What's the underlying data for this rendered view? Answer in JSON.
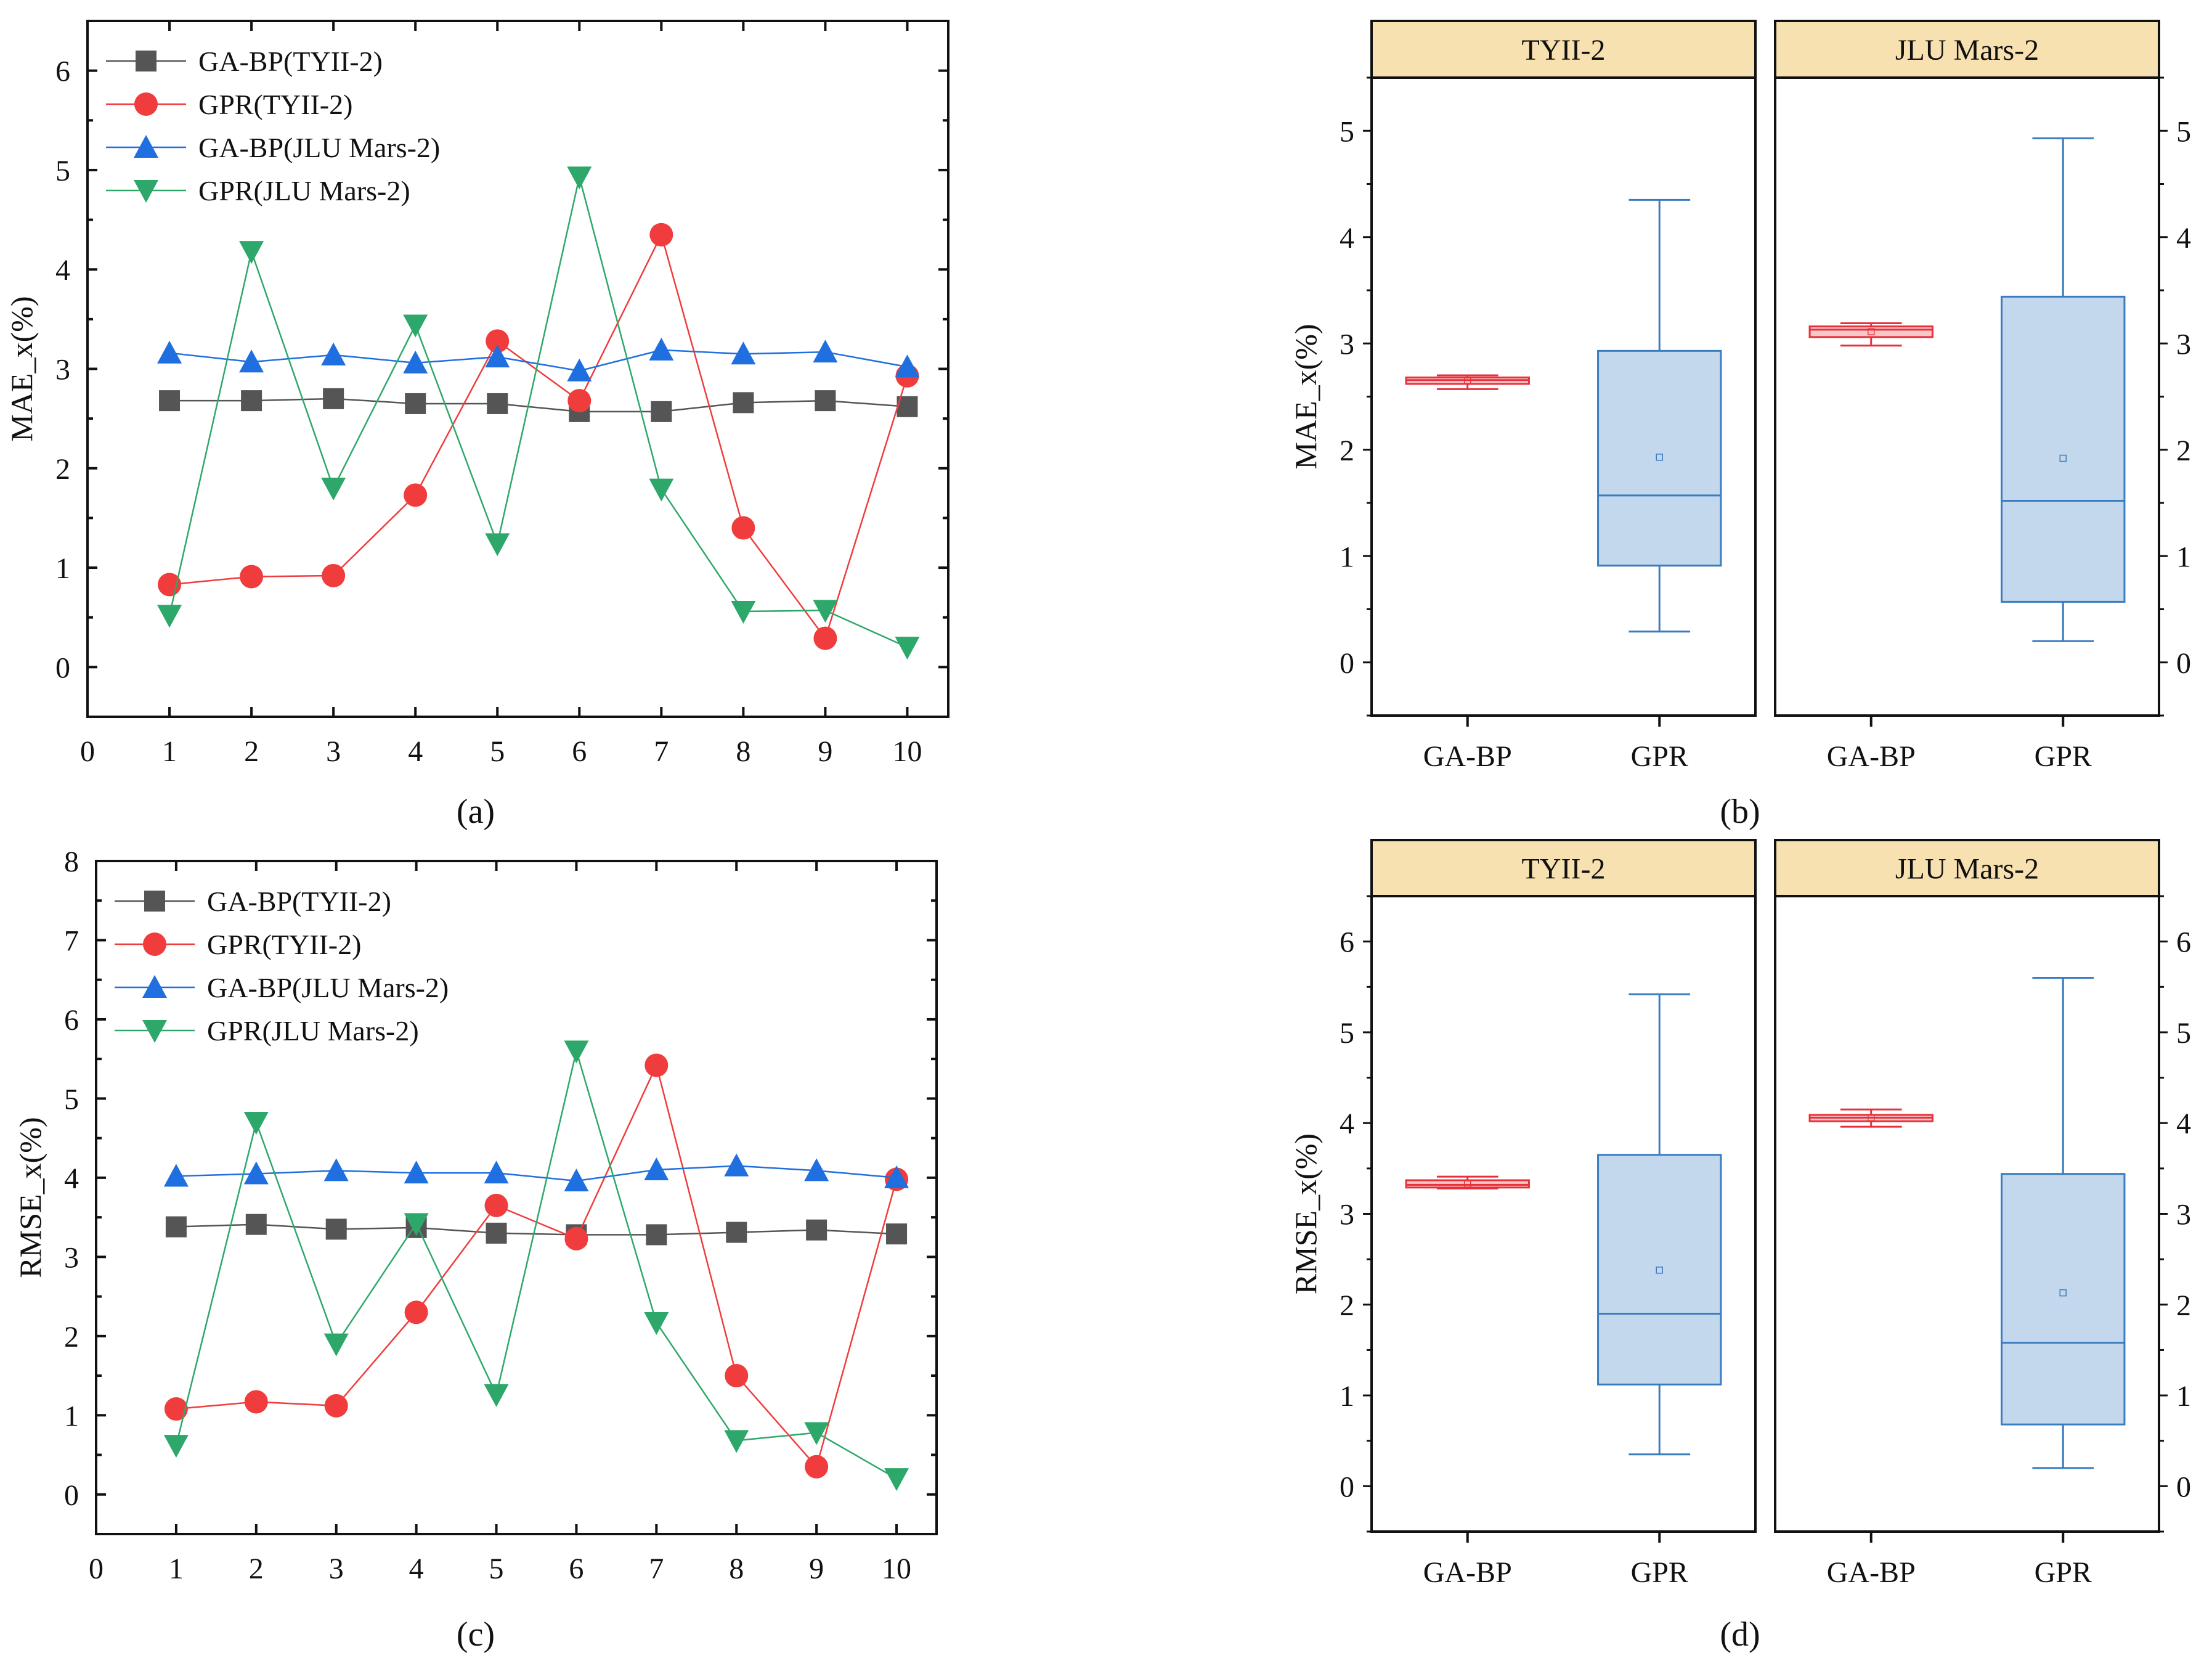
{
  "chart_data": [
    {
      "id": "a",
      "type": "line",
      "caption": "a",
      "xlabel": "",
      "ylabel": "MAE_x(%)",
      "xlim": [
        0,
        10.5
      ],
      "ylim": [
        -0.5,
        6.5
      ],
      "xticks": [
        0,
        1,
        2,
        3,
        4,
        5,
        6,
        7,
        8,
        9,
        10
      ],
      "yticks": [
        0,
        1,
        2,
        3,
        4,
        5,
        6
      ],
      "legend_position": "top-left",
      "x": [
        1,
        2,
        3,
        4,
        5,
        6,
        7,
        8,
        9,
        10
      ],
      "series": [
        {
          "name": "GA-BP(TYII-2)",
          "color": "#555555",
          "marker": "square",
          "values": [
            2.68,
            2.68,
            2.7,
            2.65,
            2.65,
            2.57,
            2.57,
            2.66,
            2.68,
            2.62
          ]
        },
        {
          "name": "GPR(TYII-2)",
          "color": "#f03c3c",
          "marker": "circle",
          "values": [
            0.83,
            0.91,
            0.92,
            1.73,
            3.28,
            2.68,
            4.35,
            1.4,
            0.29,
            2.93
          ]
        },
        {
          "name": "GA-BP(JLU Mars-2)",
          "color": "#1f6fe0",
          "marker": "triangle-up",
          "values": [
            3.16,
            3.07,
            3.14,
            3.06,
            3.12,
            2.98,
            3.19,
            3.15,
            3.17,
            3.02
          ]
        },
        {
          "name": "GPR(JLU Mars-2)",
          "color": "#2ea86a",
          "marker": "triangle-down",
          "values": [
            0.52,
            4.18,
            1.8,
            3.44,
            1.24,
            4.93,
            1.79,
            0.56,
            0.57,
            0.2
          ]
        }
      ]
    },
    {
      "id": "b",
      "type": "box",
      "caption": "b",
      "ylabel": "MAE_x(%)",
      "ylim": [
        -0.5,
        5.5
      ],
      "yticks": [
        0,
        1,
        2,
        3,
        4,
        5
      ],
      "facets": [
        {
          "title": "TYII-2",
          "boxes": [
            {
              "label": "GA-BP",
              "min": 2.57,
              "q1": 2.62,
              "median": 2.655,
              "q3": 2.68,
              "max": 2.7,
              "mean": 2.646
            },
            {
              "label": "GPR",
              "min": 0.29,
              "q1": 0.91,
              "median": 1.57,
              "q3": 2.93,
              "max": 4.35,
              "mean": 1.93
            }
          ]
        },
        {
          "title": "JLU Mars-2",
          "boxes": [
            {
              "label": "GA-BP",
              "min": 2.98,
              "q1": 3.06,
              "median": 3.13,
              "q3": 3.16,
              "max": 3.19,
              "mean": 3.11
            },
            {
              "label": "GPR",
              "min": 0.2,
              "q1": 0.57,
              "median": 1.52,
              "q3": 3.44,
              "max": 4.93,
              "mean": 1.92
            }
          ]
        }
      ]
    },
    {
      "id": "c",
      "type": "line",
      "caption": "c",
      "xlabel": "",
      "ylabel": "RMSE_x(%)",
      "xlim": [
        0,
        10.5
      ],
      "ylim": [
        -0.5,
        8
      ],
      "xticks": [
        0,
        1,
        2,
        3,
        4,
        5,
        6,
        7,
        8,
        9,
        10
      ],
      "yticks": [
        0,
        1,
        2,
        3,
        4,
        5,
        6,
        7,
        8
      ],
      "legend_position": "top-left",
      "x": [
        1,
        2,
        3,
        4,
        5,
        6,
        7,
        8,
        9,
        10
      ],
      "series": [
        {
          "name": "GA-BP(TYII-2)",
          "color": "#555555",
          "marker": "square",
          "values": [
            3.38,
            3.41,
            3.35,
            3.37,
            3.3,
            3.28,
            3.28,
            3.31,
            3.34,
            3.29
          ]
        },
        {
          "name": "GPR(TYII-2)",
          "color": "#f03c3c",
          "marker": "circle",
          "values": [
            1.08,
            1.17,
            1.12,
            2.3,
            3.65,
            3.23,
            5.42,
            1.5,
            0.35,
            3.98
          ]
        },
        {
          "name": "GA-BP(JLU Mars-2)",
          "color": "#1f6fe0",
          "marker": "triangle-up",
          "values": [
            4.02,
            4.05,
            4.09,
            4.06,
            4.06,
            3.96,
            4.1,
            4.15,
            4.09,
            4.0
          ]
        },
        {
          "name": "GPR(JLU Mars-2)",
          "color": "#2ea86a",
          "marker": "triangle-down",
          "values": [
            0.62,
            4.7,
            1.9,
            3.42,
            1.26,
            5.6,
            2.17,
            0.68,
            0.78,
            0.2
          ]
        }
      ]
    },
    {
      "id": "d",
      "type": "box",
      "caption": "d",
      "ylabel": "RMSE_x(%)",
      "ylim": [
        -0.5,
        6.5
      ],
      "yticks": [
        0,
        1,
        2,
        3,
        4,
        5,
        6
      ],
      "facets": [
        {
          "title": "TYII-2",
          "boxes": [
            {
              "label": "GA-BP",
              "min": 3.28,
              "q1": 3.29,
              "median": 3.32,
              "q3": 3.37,
              "max": 3.41,
              "mean": 3.33
            },
            {
              "label": "GPR",
              "min": 0.35,
              "q1": 1.12,
              "median": 1.9,
              "q3": 3.65,
              "max": 5.42,
              "mean": 2.38
            }
          ]
        },
        {
          "title": "JLU Mars-2",
          "boxes": [
            {
              "label": "GA-BP",
              "min": 3.96,
              "q1": 4.02,
              "median": 4.06,
              "q3": 4.09,
              "max": 4.15,
              "mean": 4.06
            },
            {
              "label": "GPR",
              "min": 0.2,
              "q1": 0.68,
              "median": 1.58,
              "q3": 3.44,
              "max": 5.6,
              "mean": 2.13
            }
          ]
        }
      ]
    }
  ],
  "colors": {
    "box_gaip": "#e8303a",
    "box_gpr_fill": "#c3d8ec",
    "box_gpr_stroke": "#3a7cc0",
    "facet_header": "#f8e1b0"
  }
}
